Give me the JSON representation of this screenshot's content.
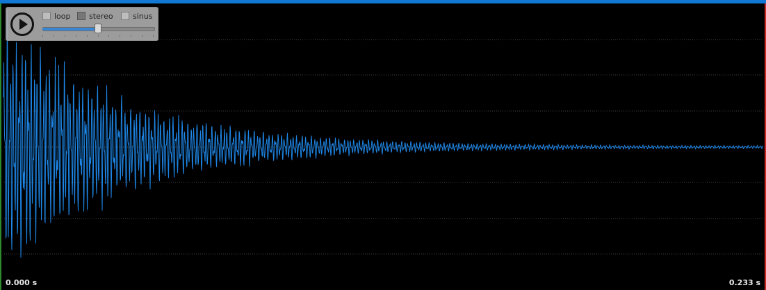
{
  "player": {
    "play_icon": "play-circle-icon",
    "options": [
      {
        "label": "loop",
        "checked": false
      },
      {
        "label": "stereo",
        "checked": true
      },
      {
        "label": "sinus",
        "checked": false
      }
    ],
    "slider_value": 0.5
  },
  "waveform": {
    "start_time": "0.000 s",
    "end_time": "0.233 s",
    "wave_color": "#1e86e6",
    "grid_color": "#444444",
    "background": "#000000"
  }
}
